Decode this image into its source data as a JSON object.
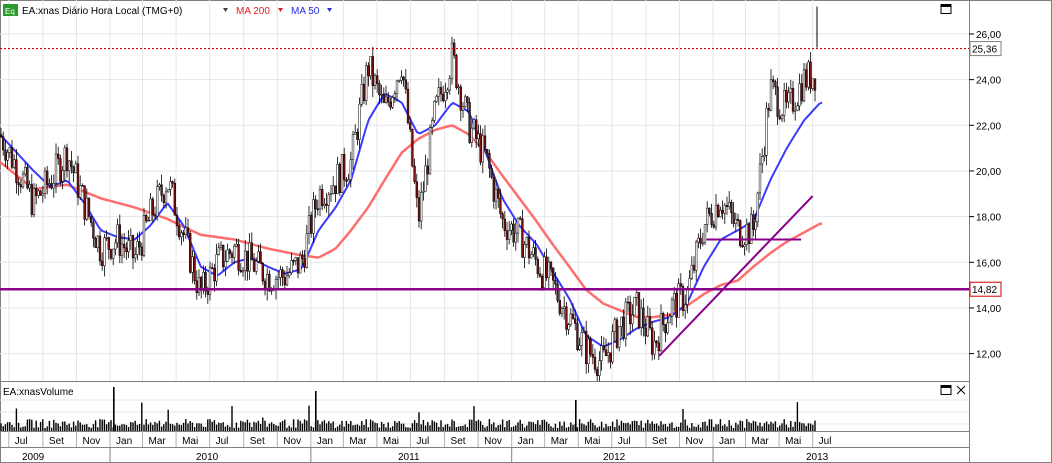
{
  "header": {
    "eq_badge": "Eq",
    "symbol_text": "EA:xnas Diário Hora Local (TMG+0)",
    "ma200_label": "MA 200",
    "ma50_label": "MA 50"
  },
  "volume_panel": {
    "title": "EA:xnasVolume"
  },
  "colors": {
    "price_bar": "#7a1010",
    "ma200": "#ff6e6e",
    "ma50": "#3b3bff",
    "trendline": "#8b008b",
    "grid": "#e6e6e6",
    "current_price_line": "#cc0000"
  },
  "chart_data": {
    "type": "line",
    "price_axis": {
      "ylim": [
        10.8,
        27.4
      ],
      "ticks": [
        "12,00",
        "14,00",
        "16,00",
        "18,00",
        "20,00",
        "22,00",
        "24,00",
        "26,00"
      ]
    },
    "current_price": {
      "value": 25.36,
      "label": "25,36"
    },
    "support_line": {
      "value": 14.82,
      "label": "14,82"
    },
    "months": [
      "Jul",
      "Set",
      "Nov",
      "Jan",
      "Mar",
      "Mai",
      "Jul",
      "Set",
      "Nov",
      "Jan",
      "Mar",
      "Mai",
      "Jul",
      "Set",
      "Nov",
      "Jan",
      "Mar",
      "Mai",
      "Jul",
      "Set",
      "Nov",
      "Jan",
      "Mar",
      "Mai",
      "Jul"
    ],
    "years": [
      "2009",
      "2010",
      "2011",
      "2012",
      "2013"
    ],
    "price_close": [
      [
        "2009-06",
        21.6
      ],
      [
        "2009-07",
        20.2
      ],
      [
        "2009-08",
        18.6
      ],
      [
        "2009-09",
        19.6
      ],
      [
        "2009-10",
        20.8
      ],
      [
        "2009-11",
        18.6
      ],
      [
        "2009-12",
        16.6
      ],
      [
        "2010-01",
        17.0
      ],
      [
        "2010-02",
        16.2
      ],
      [
        "2010-03",
        18.0
      ],
      [
        "2010-04",
        19.6
      ],
      [
        "2010-05",
        17.2
      ],
      [
        "2010-06",
        14.6
      ],
      [
        "2010-07",
        16.0
      ],
      [
        "2010-08",
        16.6
      ],
      [
        "2010-09",
        16.0
      ],
      [
        "2010-10",
        15.4
      ],
      [
        "2010-11",
        15.4
      ],
      [
        "2010-12",
        16.0
      ],
      [
        "2011-01",
        19.0
      ],
      [
        "2011-02",
        19.6
      ],
      [
        "2011-03",
        20.4
      ],
      [
        "2011-04",
        24.6
      ],
      [
        "2011-05",
        22.6
      ],
      [
        "2011-06",
        24.8
      ],
      [
        "2011-07",
        17.8
      ],
      [
        "2011-08",
        22.6
      ],
      [
        "2011-09",
        25.0
      ],
      [
        "2011-10",
        22.0
      ],
      [
        "2011-11",
        20.6
      ],
      [
        "2011-12",
        17.8
      ],
      [
        "2012-01",
        17.2
      ],
      [
        "2012-02",
        16.0
      ],
      [
        "2012-03",
        15.0
      ],
      [
        "2012-04",
        13.6
      ],
      [
        "2012-05",
        12.2
      ],
      [
        "2012-06",
        11.6
      ],
      [
        "2012-07",
        13.2
      ],
      [
        "2012-08",
        14.0
      ],
      [
        "2012-09",
        12.4
      ],
      [
        "2012-10",
        14.0
      ],
      [
        "2012-11",
        14.6
      ],
      [
        "2012-12",
        17.6
      ],
      [
        "2013-01",
        18.8
      ],
      [
        "2013-02",
        17.4
      ],
      [
        "2013-03",
        17.4
      ],
      [
        "2013-04",
        23.6
      ],
      [
        "2013-05",
        22.6
      ],
      [
        "2013-06",
        24.0
      ],
      [
        "2013-07",
        24.4
      ]
    ],
    "ma50": [
      [
        "2009-06",
        21.6
      ],
      [
        "2009-08",
        20.0
      ],
      [
        "2009-09",
        19.3
      ],
      [
        "2009-10",
        19.6
      ],
      [
        "2009-11",
        18.6
      ],
      [
        "2009-12",
        17.4
      ],
      [
        "2010-01",
        17.1
      ],
      [
        "2010-02",
        17.0
      ],
      [
        "2010-03",
        17.6
      ],
      [
        "2010-04",
        18.6
      ],
      [
        "2010-05",
        17.6
      ],
      [
        "2010-06",
        15.8
      ],
      [
        "2010-07",
        15.4
      ],
      [
        "2010-08",
        16.0
      ],
      [
        "2010-09",
        16.2
      ],
      [
        "2010-10",
        15.8
      ],
      [
        "2010-11",
        15.5
      ],
      [
        "2010-12",
        15.7
      ],
      [
        "2011-01",
        17.4
      ],
      [
        "2011-02",
        18.4
      ],
      [
        "2011-03",
        19.6
      ],
      [
        "2011-04",
        22.2
      ],
      [
        "2011-05",
        23.4
      ],
      [
        "2011-06",
        23.0
      ],
      [
        "2011-07",
        21.6
      ],
      [
        "2011-08",
        22.0
      ],
      [
        "2011-09",
        23.0
      ],
      [
        "2011-10",
        22.6
      ],
      [
        "2011-11",
        20.8
      ],
      [
        "2011-12",
        18.8
      ],
      [
        "2012-01",
        17.6
      ],
      [
        "2012-02",
        16.8
      ],
      [
        "2012-03",
        15.6
      ],
      [
        "2012-04",
        14.4
      ],
      [
        "2012-05",
        12.8
      ],
      [
        "2012-06",
        12.3
      ],
      [
        "2012-07",
        12.6
      ],
      [
        "2012-08",
        13.1
      ],
      [
        "2012-09",
        13.4
      ],
      [
        "2012-10",
        13.6
      ],
      [
        "2012-11",
        14.2
      ],
      [
        "2012-12",
        15.8
      ],
      [
        "2013-01",
        17.0
      ],
      [
        "2013-02",
        17.4
      ],
      [
        "2013-03",
        17.8
      ],
      [
        "2013-04",
        19.6
      ],
      [
        "2013-05",
        21.0
      ],
      [
        "2013-06",
        22.2
      ],
      [
        "2013-07",
        23.0
      ]
    ],
    "ma200": [
      [
        "2009-06",
        20.4
      ],
      [
        "2009-08",
        19.2
      ],
      [
        "2009-10",
        19.4
      ],
      [
        "2009-12",
        18.8
      ],
      [
        "2010-02",
        18.4
      ],
      [
        "2010-04",
        17.9
      ],
      [
        "2010-06",
        17.2
      ],
      [
        "2010-08",
        17.0
      ],
      [
        "2010-10",
        16.6
      ],
      [
        "2010-12",
        16.3
      ],
      [
        "2011-01",
        16.2
      ],
      [
        "2011-02",
        16.6
      ],
      [
        "2011-03",
        17.4
      ],
      [
        "2011-04",
        18.4
      ],
      [
        "2011-05",
        19.6
      ],
      [
        "2011-06",
        20.8
      ],
      [
        "2011-07",
        21.4
      ],
      [
        "2011-08",
        21.8
      ],
      [
        "2011-09",
        22.0
      ],
      [
        "2011-10",
        21.6
      ],
      [
        "2011-11",
        20.8
      ],
      [
        "2011-12",
        19.8
      ],
      [
        "2012-01",
        18.8
      ],
      [
        "2012-02",
        17.8
      ],
      [
        "2012-03",
        16.8
      ],
      [
        "2012-04",
        15.8
      ],
      [
        "2012-05",
        14.8
      ],
      [
        "2012-06",
        14.2
      ],
      [
        "2012-07",
        13.9
      ],
      [
        "2012-08",
        13.6
      ],
      [
        "2012-09",
        13.6
      ],
      [
        "2012-10",
        13.7
      ],
      [
        "2012-11",
        14.1
      ],
      [
        "2012-12",
        14.6
      ],
      [
        "2013-01",
        15.0
      ],
      [
        "2013-02",
        15.2
      ],
      [
        "2013-03",
        15.8
      ],
      [
        "2013-04",
        16.4
      ],
      [
        "2013-05",
        16.9
      ],
      [
        "2013-06",
        17.3
      ],
      [
        "2013-07",
        17.7
      ]
    ],
    "trendlines": [
      {
        "name": "rising-trendline",
        "points": [
          [
            "2012-09-25",
            11.9
          ],
          [
            "2013-07-01",
            18.9
          ]
        ]
      },
      {
        "name": "base-line",
        "points": [
          [
            "2012-12-20",
            17.0
          ],
          [
            "2013-06-10",
            17.0
          ]
        ]
      }
    ],
    "spike_high": 27.2
  }
}
